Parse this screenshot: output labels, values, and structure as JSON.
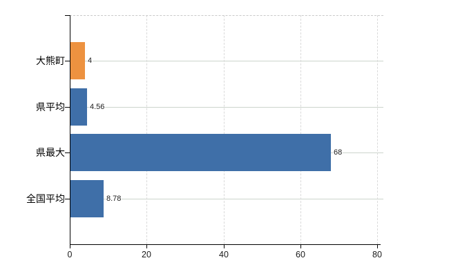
{
  "chart_data": {
    "type": "bar",
    "orientation": "horizontal",
    "title": "",
    "categories": [
      "大熊町",
      "県平均",
      "県最大",
      "全国平均"
    ],
    "values": [
      4,
      4.56,
      68,
      8.78
    ],
    "value_labels": [
      "4",
      "4.56",
      "68",
      "8.78"
    ],
    "bar_colors": [
      "#ED9240",
      "#3F6FA8",
      "#3F6FA8",
      "#3F6FA8"
    ],
    "x_ticks": [
      0,
      20,
      40,
      60,
      80
    ],
    "x_tick_labels": [
      "0",
      "20",
      "40",
      "60",
      "80"
    ],
    "xlim": [
      0,
      81.6
    ],
    "grid": true,
    "legend": false,
    "colors": {
      "highlight_bar": "#ED9240",
      "default_bar": "#3F6FA8",
      "axis": "#000000",
      "grid_vertical": "#d9d9d9",
      "grid_horizontal": "#ccd4cc",
      "border_dashed": "#c9c9c9",
      "text": "#000000",
      "background": "#ffffff"
    }
  }
}
